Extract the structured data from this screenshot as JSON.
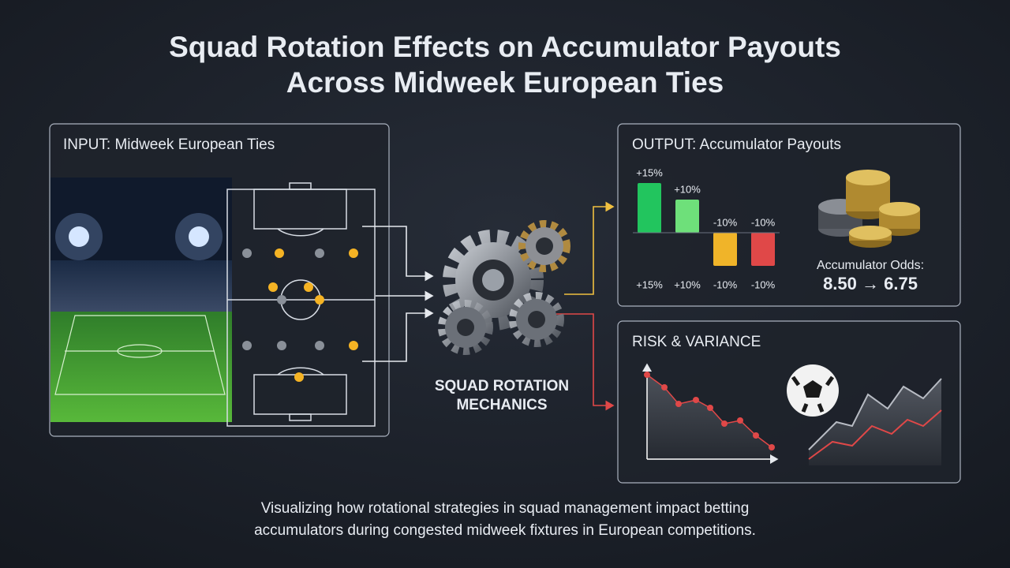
{
  "header": {
    "title_lines": [
      "Squad Rotation Effects on Accumulator Payouts",
      "Across Midweek European Ties"
    ]
  },
  "input_panel": {
    "label": "INPUT: Midweek European Ties"
  },
  "mechanics": {
    "label_lines": [
      "SQUAD ROTATION",
      "MECHANICS"
    ]
  },
  "output_panel": {
    "label": "OUTPUT: Accumulator Payouts",
    "bars": {
      "values": [
        15,
        10,
        -10,
        -10
      ],
      "value_labels": [
        "+15%",
        "+10%",
        "-10%",
        "-10%"
      ],
      "colors": [
        "#22c55e",
        "#6ee07a",
        "#f0b429",
        "#e04848"
      ],
      "label_colors": [
        "#4ade80",
        "#86efac",
        "#fbbf24",
        "#f87171"
      ]
    },
    "odds_label": "Accumulator Odds:",
    "odds": "8.50 → 6.75"
  },
  "risk_panel": {
    "label": "RISK & VARIANCE"
  },
  "caption_lines": [
    "Visualizing how rotational strategies in squad management impact betting",
    "accumulators during congested midweek fixtures in European competitions."
  ]
}
